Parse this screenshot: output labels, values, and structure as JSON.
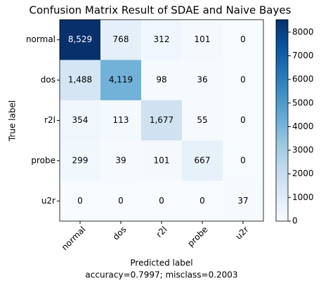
{
  "chart_data": {
    "type": "heatmap",
    "title": "Confusion Matrix Result of SDAE and Naive Bayes",
    "xlabel": "Predicted label",
    "ylabel": "True label",
    "annotation": "accuracy=0.7997; misclass=0.2003",
    "x_categories": [
      "normal",
      "dos",
      "r2l",
      "probe",
      "u2r"
    ],
    "y_categories": [
      "normal",
      "dos",
      "r2l",
      "probe",
      "u2r"
    ],
    "values": [
      [
        8529,
        768,
        312,
        101,
        0
      ],
      [
        1488,
        4119,
        98,
        36,
        0
      ],
      [
        354,
        113,
        1677,
        55,
        0
      ],
      [
        299,
        39,
        101,
        667,
        0
      ],
      [
        0,
        0,
        0,
        0,
        37
      ]
    ],
    "value_labels": [
      [
        "8,529",
        "768",
        "312",
        "101",
        "0"
      ],
      [
        "1,488",
        "4,119",
        "98",
        "36",
        "0"
      ],
      [
        "354",
        "113",
        "1,677",
        "55",
        "0"
      ],
      [
        "299",
        "39",
        "101",
        "667",
        "0"
      ],
      [
        "0",
        "0",
        "0",
        "0",
        "37"
      ]
    ],
    "colormap": "Blues",
    "clim": [
      0,
      8529
    ],
    "cticks": [
      0,
      1000,
      2000,
      3000,
      4000,
      5000,
      6000,
      7000,
      8000
    ]
  }
}
